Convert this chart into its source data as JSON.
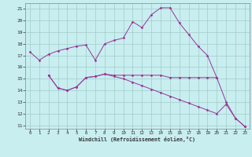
{
  "xlabel": "Windchill (Refroidissement éolien,°C)",
  "bg_color": "#c8eef0",
  "grid_color": "#a0ccc8",
  "line_color": "#993399",
  "xlim": [
    -0.5,
    23.5
  ],
  "ylim": [
    10.7,
    21.5
  ],
  "yticks": [
    11,
    12,
    13,
    14,
    15,
    16,
    17,
    18,
    19,
    20,
    21
  ],
  "xticks": [
    0,
    1,
    2,
    3,
    4,
    5,
    6,
    7,
    8,
    9,
    10,
    11,
    12,
    13,
    14,
    15,
    16,
    17,
    18,
    19,
    20,
    21,
    22,
    23
  ],
  "series": [
    {
      "x": [
        0,
        1,
        2,
        3,
        4,
        5,
        6,
        7,
        8,
        9,
        10,
        11,
        12,
        13,
        14,
        15,
        16,
        17,
        18,
        19,
        20,
        21,
        22,
        23
      ],
      "y": [
        17.3,
        16.6,
        17.1,
        17.4,
        17.6,
        17.8,
        17.9,
        16.6,
        18.0,
        18.3,
        18.5,
        19.9,
        19.4,
        20.5,
        21.1,
        21.1,
        19.8,
        18.8,
        17.8,
        17.0,
        15.1,
        13.0,
        11.6,
        10.9
      ]
    },
    {
      "x": [
        2,
        3,
        4,
        5,
        6,
        7,
        8,
        9,
        10,
        11,
        12,
        13,
        14,
        15,
        16,
        17,
        18,
        19,
        20
      ],
      "y": [
        15.3,
        14.2,
        14.0,
        14.3,
        15.1,
        15.2,
        15.4,
        15.3,
        15.3,
        15.3,
        15.3,
        15.3,
        15.3,
        15.1,
        15.1,
        15.1,
        15.1,
        15.1,
        15.1
      ]
    },
    {
      "x": [
        2,
        3,
        4,
        5,
        6,
        7,
        8,
        9,
        10,
        11,
        12,
        13,
        14,
        15,
        16,
        17,
        18,
        19,
        20,
        21,
        22,
        23
      ],
      "y": [
        15.3,
        14.2,
        14.0,
        14.3,
        15.1,
        15.2,
        15.4,
        15.2,
        15.0,
        14.7,
        14.4,
        14.1,
        13.8,
        13.5,
        13.2,
        12.9,
        12.6,
        12.3,
        12.0,
        12.8,
        11.6,
        10.9
      ]
    }
  ]
}
